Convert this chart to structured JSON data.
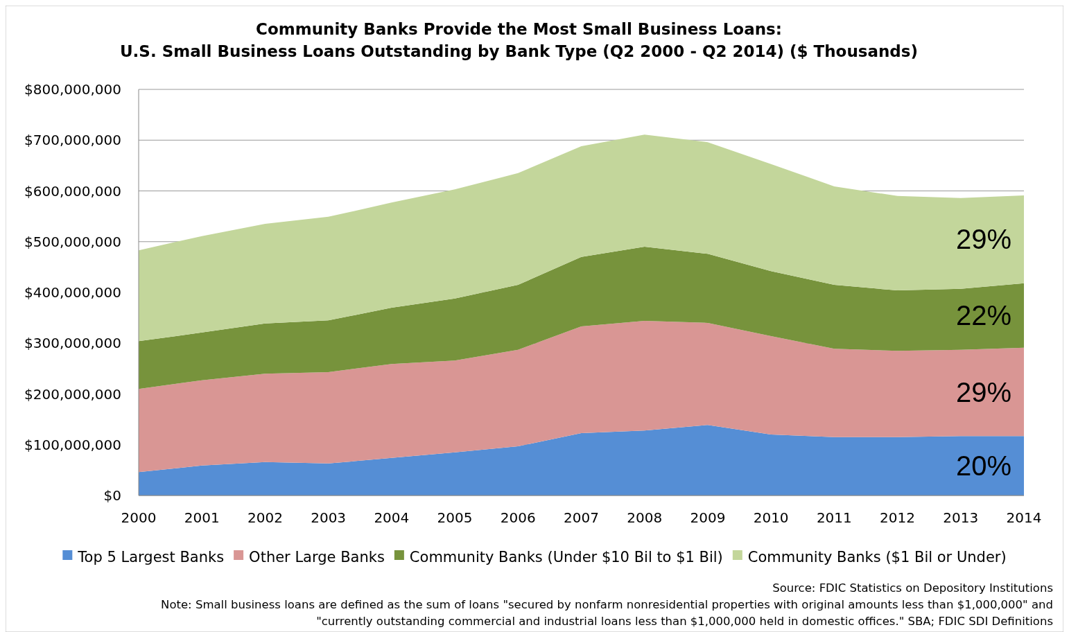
{
  "chart_data": {
    "type": "area",
    "stacked": true,
    "title": "Community Banks Provide the Most Small Business Loans:",
    "subtitle": "U.S. Small Business Loans Outstanding by Bank Type (Q2 2000 - Q2 2014) ($ Thousands)",
    "x": [
      2000,
      2001,
      2002,
      2003,
      2004,
      2005,
      2006,
      2007,
      2008,
      2009,
      2010,
      2011,
      2012,
      2013,
      2014
    ],
    "xlim": [
      2000,
      2014
    ],
    "xticks": [
      2000,
      2001,
      2002,
      2003,
      2004,
      2005,
      2006,
      2007,
      2008,
      2009,
      2010,
      2011,
      2012,
      2013,
      2014
    ],
    "ylim": [
      0,
      800000000
    ],
    "yticks": [
      {
        "value": 0,
        "label": "$0"
      },
      {
        "value": 100000000,
        "label": "$100,000,000"
      },
      {
        "value": 200000000,
        "label": "$200,000,000"
      },
      {
        "value": 300000000,
        "label": "$300,000,000"
      },
      {
        "value": 400000000,
        "label": "$400,000,000"
      },
      {
        "value": 500000000,
        "label": "$500,000,000"
      },
      {
        "value": 600000000,
        "label": "$600,000,000"
      },
      {
        "value": 700000000,
        "label": "$700,000,000"
      },
      {
        "value": 800000000,
        "label": "$800,000,000"
      }
    ],
    "grid": "y",
    "legend": "bottom",
    "series": [
      {
        "name": "Top 5 Largest Banks",
        "color": "#558ed5",
        "values": [
          46000000,
          59000000,
          66000000,
          63000000,
          74000000,
          85000000,
          97000000,
          123000000,
          128000000,
          139000000,
          120000000,
          115000000,
          115000000,
          117000000,
          117000000
        ]
      },
      {
        "name": "Other Large Banks",
        "color": "#d99694",
        "values": [
          164000000,
          168000000,
          174000000,
          180000000,
          185000000,
          181000000,
          190000000,
          210000000,
          216000000,
          201000000,
          194000000,
          174000000,
          170000000,
          170000000,
          174000000
        ]
      },
      {
        "name": "Community Banks (Under $10 Bil to $1 Bil)",
        "color": "#77933c",
        "values": [
          94000000,
          94000000,
          99000000,
          102000000,
          111000000,
          122000000,
          128000000,
          137000000,
          146000000,
          136000000,
          128000000,
          126000000,
          119000000,
          120000000,
          127000000
        ]
      },
      {
        "name": "Community Banks ($1 Bil or Under)",
        "color": "#c3d69b",
        "values": [
          179000000,
          190000000,
          196000000,
          204000000,
          207000000,
          215000000,
          220000000,
          218000000,
          221000000,
          220000000,
          211000000,
          194000000,
          186000000,
          179000000,
          173000000
        ]
      }
    ],
    "annotations": [
      "29%",
      "22%",
      "29%",
      "20%",
      "Source: FDIC Statistics on Depository Institutions",
      "Note: Small business loans are defined as the sum of loans \"secured by nonfarm nonresidential properties with original amounts less than $1,000,000\" and",
      "\"currently outstanding commercial and industrial loans less than $1,000,000 held in domestic offices.\" SBA; FDIC SDI Definitions"
    ]
  }
}
